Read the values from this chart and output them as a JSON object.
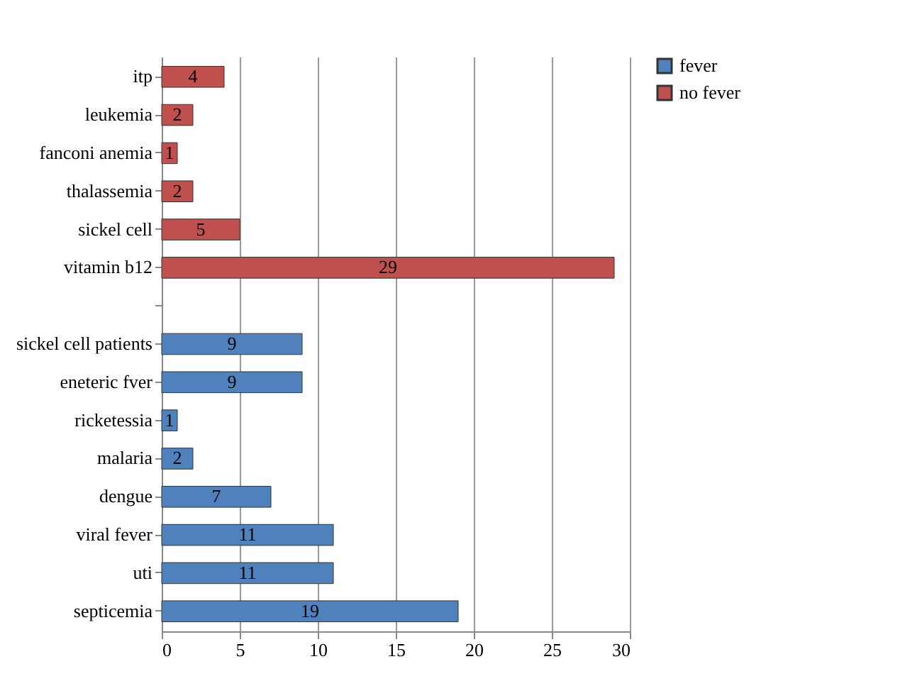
{
  "chart_data": {
    "type": "bar",
    "orientation": "horizontal",
    "categories": [
      "itp",
      "leukemia",
      "fanconi anemia",
      "thalassemia",
      "sickel cell",
      "vitamin b12",
      null,
      "sickel cell patients",
      "eneteric fver",
      "ricketessia",
      "malaria",
      "dengue",
      "viral fever",
      "uti",
      "septicemia"
    ],
    "series": [
      {
        "name": "fever",
        "color": "#4f81bd",
        "values": [
          null,
          null,
          null,
          null,
          null,
          null,
          null,
          9,
          9,
          1,
          2,
          7,
          11,
          11,
          19
        ]
      },
      {
        "name": "no fever",
        "color": "#c0504d",
        "values": [
          4,
          2,
          1,
          2,
          5,
          29,
          null,
          null,
          null,
          null,
          null,
          null,
          null,
          null,
          null
        ]
      }
    ],
    "xlim": [
      0,
      30
    ],
    "xticks": [
      0,
      5,
      10,
      15,
      20,
      25,
      30
    ],
    "grid": "x",
    "legend": "right",
    "data_labels": true
  }
}
